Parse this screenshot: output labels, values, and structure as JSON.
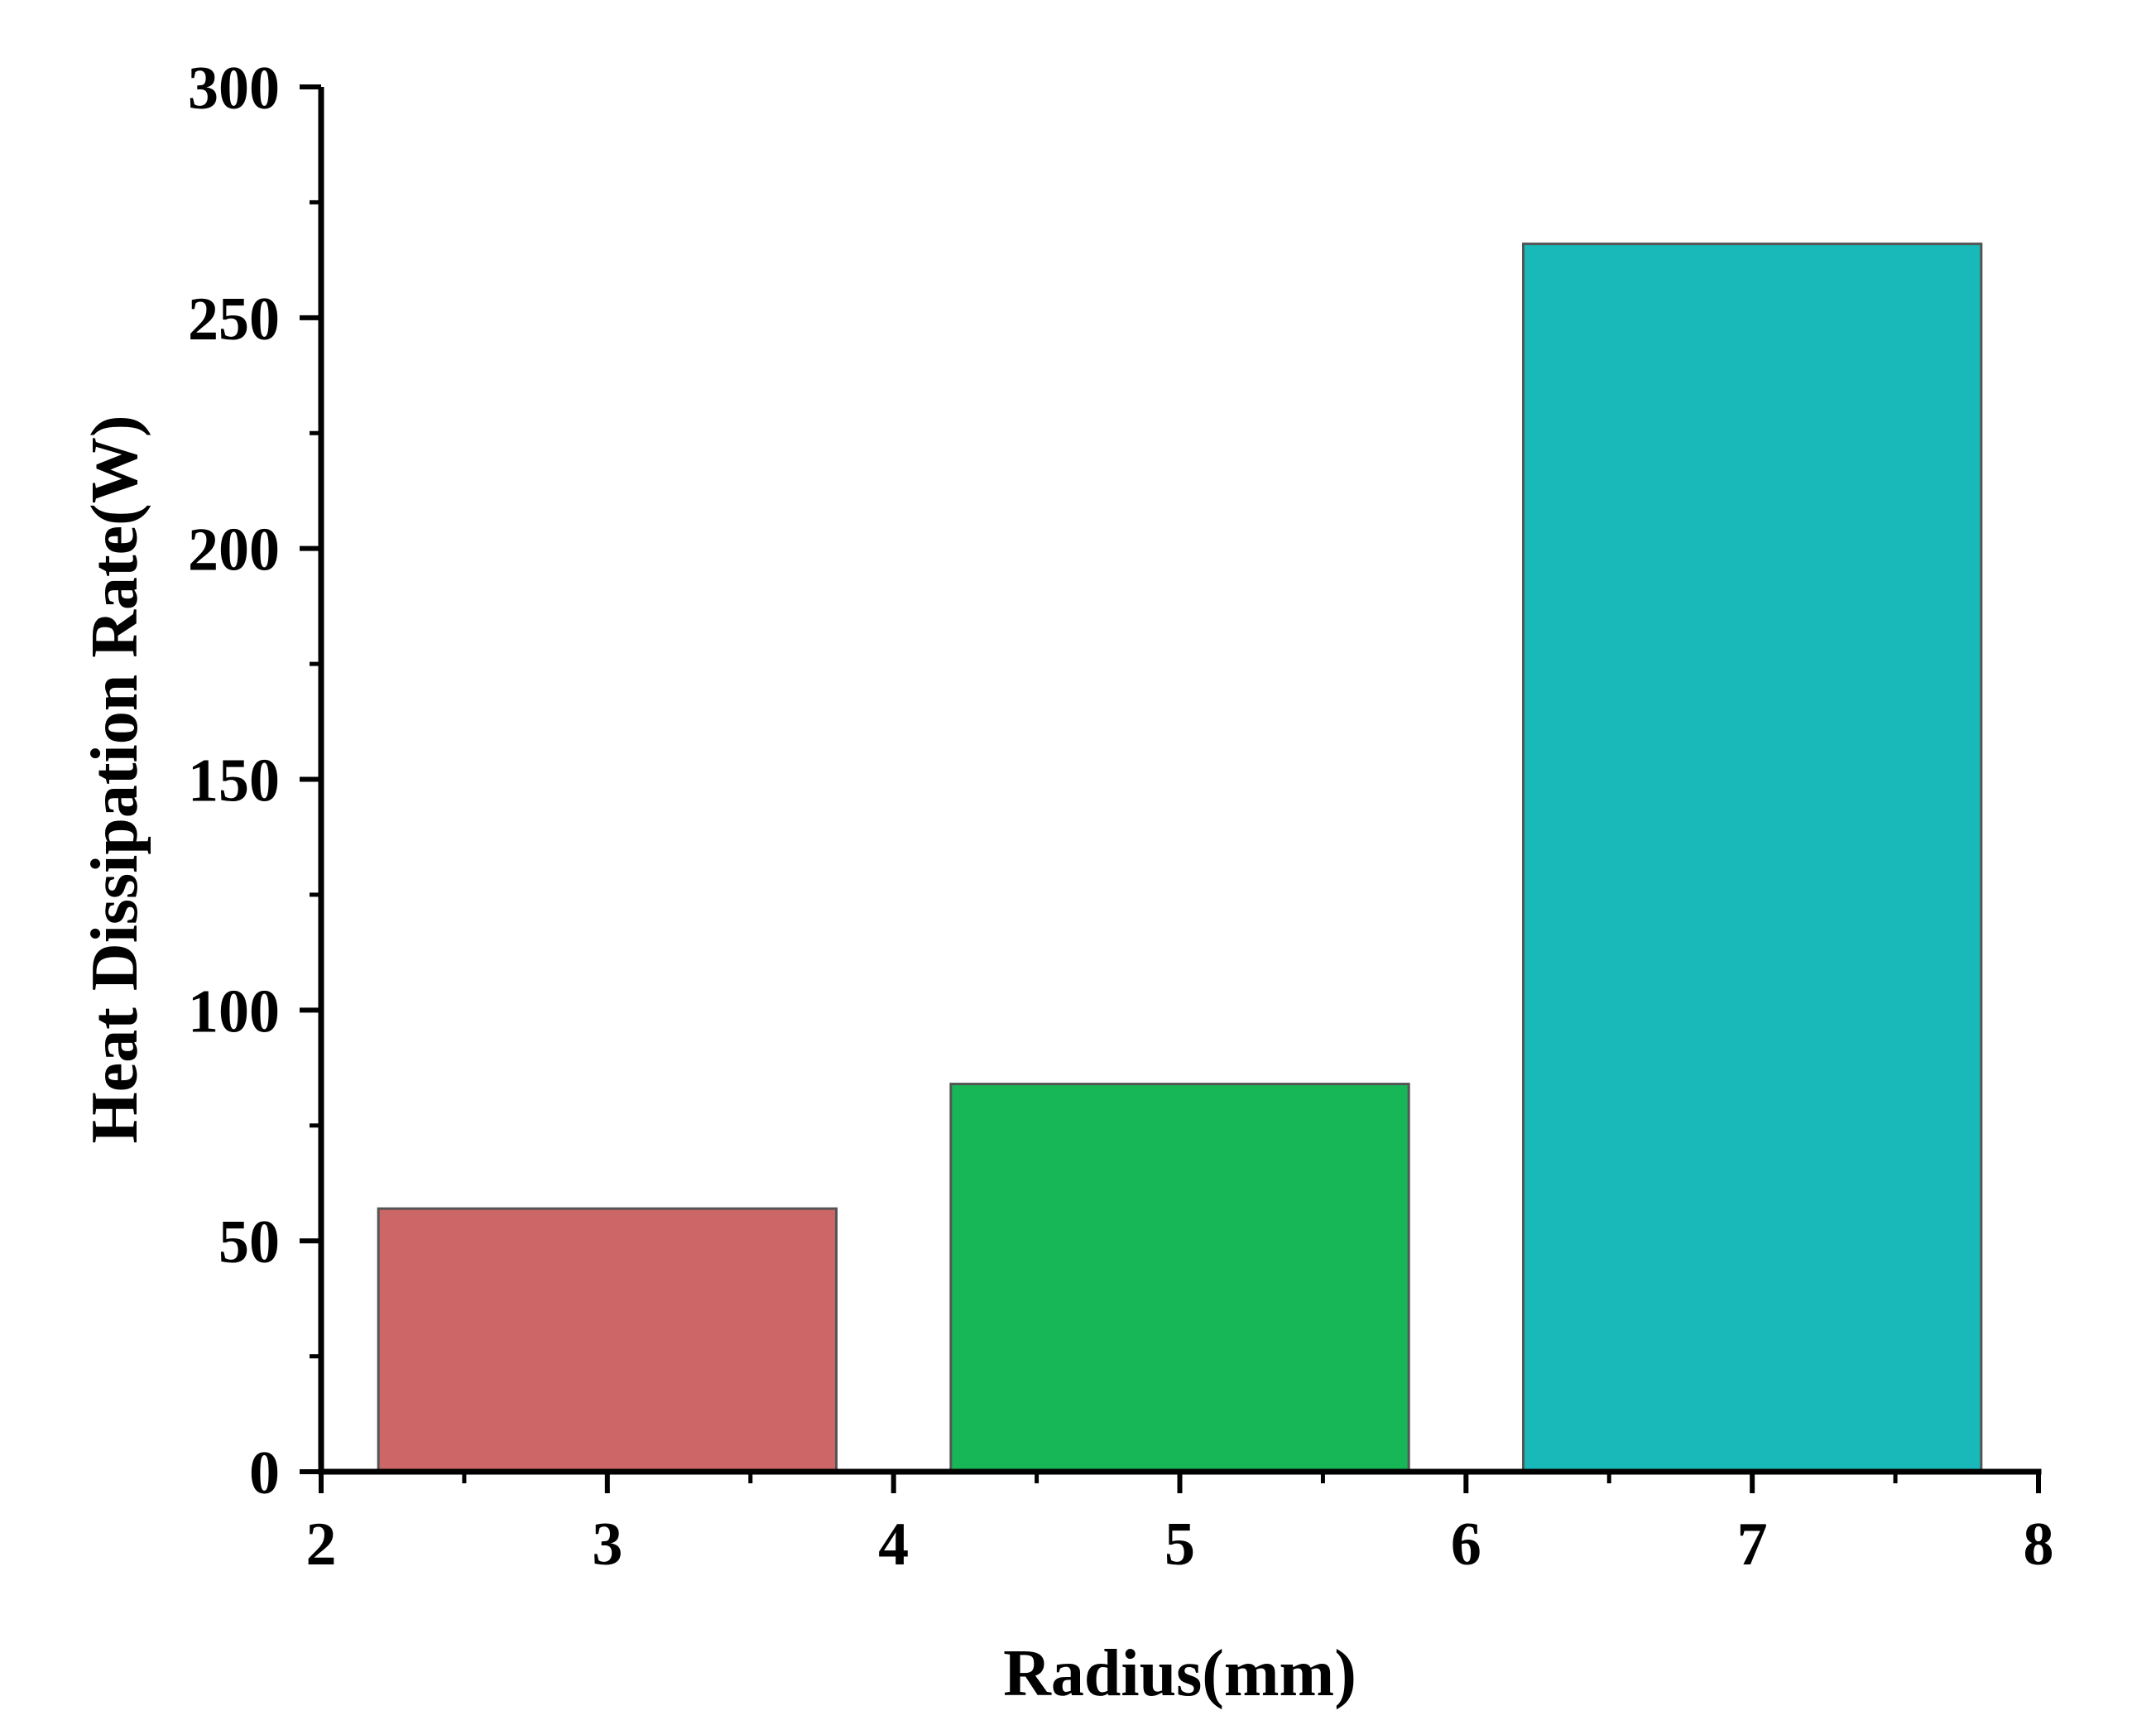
{
  "chart_data": {
    "type": "bar",
    "xlabel": "Radius(mm)",
    "ylabel": "Heat Dissipation Rate(W)",
    "xlim": [
      2,
      8
    ],
    "ylim": [
      0,
      300
    ],
    "x_ticks": [
      2,
      3,
      4,
      5,
      6,
      7,
      8
    ],
    "y_ticks": [
      0,
      50,
      100,
      150,
      200,
      250,
      300
    ],
    "bar_width": 1.6,
    "grid": false,
    "bars": [
      {
        "x": 3,
        "value": 57,
        "color": "#cd6666"
      },
      {
        "x": 5,
        "value": 84,
        "color": "#17b757"
      },
      {
        "x": 7,
        "value": 266,
        "color": "#19b9b9"
      }
    ],
    "bar_edge_color": "#555555",
    "axis_color": "#000000"
  }
}
